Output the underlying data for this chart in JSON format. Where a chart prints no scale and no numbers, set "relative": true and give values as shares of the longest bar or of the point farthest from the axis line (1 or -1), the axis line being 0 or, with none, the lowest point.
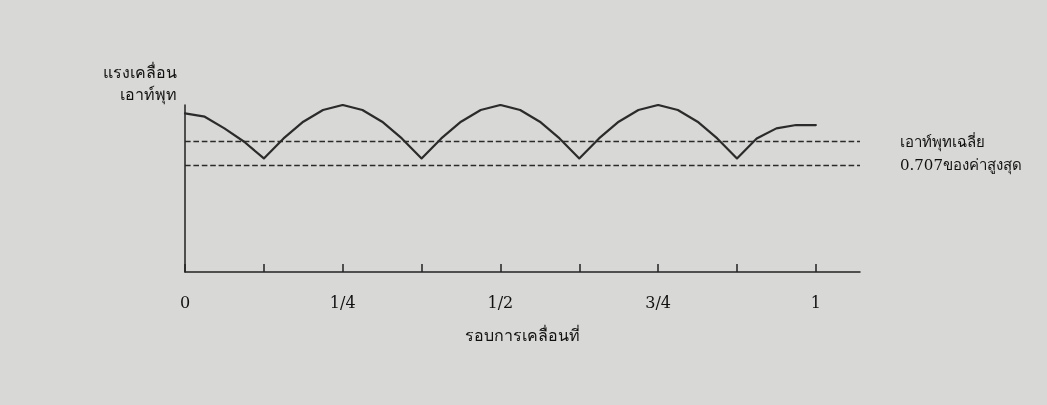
{
  "chart_data": {
    "type": "line",
    "relative": true,
    "xlabel": "รอบการเคลื่อนที่",
    "ylabel": "แรงเคลื่อน\nเอาท์พุท",
    "x": [
      0,
      0.03125,
      0.0625,
      0.09375,
      0.125,
      0.15625,
      0.1875,
      0.21875,
      0.25,
      0.28125,
      0.3125,
      0.34375,
      0.375,
      0.40625,
      0.4375,
      0.46875,
      0.5,
      0.53125,
      0.5625,
      0.59375,
      0.625,
      0.65625,
      0.6875,
      0.71875,
      0.75,
      0.78125,
      0.8125,
      0.84375,
      0.875,
      0.90625,
      0.9375,
      0.96875,
      1
    ],
    "xlim": [
      0,
      1.07
    ],
    "xticks": [
      0,
      {
        "value": 0.125,
        "label": null
      },
      {
        "value": 0.25,
        "label": "1/4"
      },
      {
        "value": 0.375,
        "label": null
      },
      {
        "value": 0.5,
        "label": "1/2"
      },
      {
        "value": 0.625,
        "label": null
      },
      {
        "value": 0.75,
        "label": "3/4"
      },
      {
        "value": 0.875,
        "label": null
      },
      1
    ],
    "series": [
      {
        "color": "#2b2b2b",
        "values": [
          0.95,
          0.93,
          0.86,
          0.78,
          0.68,
          0.8,
          0.9,
          0.97,
          1,
          0.97,
          0.9,
          0.8,
          0.68,
          0.8,
          0.9,
          0.97,
          1,
          0.97,
          0.9,
          0.8,
          0.68,
          0.8,
          0.9,
          0.97,
          1,
          0.97,
          0.9,
          0.8,
          0.68,
          0.8,
          0.86,
          0.88,
          0.88
        ]
      }
    ],
    "ref_lines": [
      {
        "axis": "y",
        "value": 0.78,
        "label": "เอาท์พุทเฉลี่ย",
        "line_style": "dashed",
        "color": "#2b2b2b"
      },
      {
        "axis": "y",
        "value": 0.64,
        "label": "0.707ของค่าสูงสุด",
        "line_style": "dashed",
        "color": "#2b2b2b"
      }
    ],
    "grid": false,
    "marker": "none",
    "line_style": "solid",
    "tick_labels": "x"
  }
}
